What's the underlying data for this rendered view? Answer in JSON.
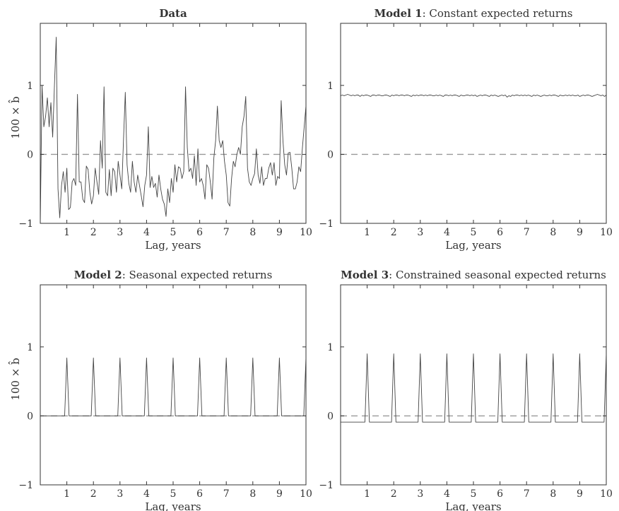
{
  "chart_data": [
    {
      "type": "line",
      "title_bold": "Data",
      "title_rest": "",
      "xlabel": "Lag, years",
      "ylabel": "100 × b̂",
      "xlim": [
        0,
        10
      ],
      "ylim": [
        -1,
        1.9
      ],
      "xticks": [
        1,
        2,
        3,
        4,
        5,
        6,
        7,
        8,
        9,
        10
      ],
      "yticks": [
        -1,
        0,
        1
      ],
      "zero_line": true,
      "series": [
        {
          "values": [
            -1.0,
            1.0,
            0.4,
            0.55,
            0.82,
            0.4,
            0.75,
            0.25,
            1.0,
            1.7,
            -0.5,
            -0.92,
            -0.45,
            -0.25,
            -0.55,
            -0.2,
            -0.8,
            -0.77,
            -0.4,
            -0.35,
            -0.45,
            0.87,
            -0.4,
            -0.4,
            -0.65,
            -0.7,
            -0.17,
            -0.22,
            -0.55,
            -0.72,
            -0.6,
            -0.2,
            -0.4,
            -0.58,
            0.2,
            -0.2,
            0.98,
            -0.55,
            -0.6,
            -0.22,
            -0.6,
            -0.2,
            -0.25,
            -0.55,
            -0.1,
            -0.3,
            -0.5,
            0.22,
            0.9,
            -0.15,
            -0.42,
            -0.55,
            -0.1,
            -0.4,
            -0.55,
            -0.3,
            -0.45,
            -0.6,
            -0.76,
            -0.45,
            -0.3,
            0.4,
            -0.48,
            -0.32,
            -0.48,
            -0.42,
            -0.62,
            -0.3,
            -0.5,
            -0.65,
            -0.72,
            -0.9,
            -0.5,
            -0.7,
            -0.35,
            -0.55,
            -0.15,
            -0.4,
            -0.18,
            -0.2,
            -0.35,
            -0.25,
            0.98,
            0.1,
            -0.25,
            -0.2,
            -0.35,
            -0.02,
            -0.45,
            0.08,
            -0.4,
            -0.35,
            -0.45,
            -0.65,
            -0.15,
            -0.2,
            -0.4,
            -0.65,
            -0.05,
            0.2,
            0.7,
            0.2,
            0.1,
            0.2,
            -0.1,
            -0.3,
            -0.7,
            -0.75,
            -0.35,
            -0.1,
            -0.18,
            0.0,
            0.1,
            0.0,
            0.4,
            0.55,
            0.84,
            -0.2,
            -0.4,
            -0.45,
            -0.35,
            -0.28,
            0.08,
            -0.3,
            -0.42,
            -0.18,
            -0.45,
            -0.35,
            -0.35,
            -0.2,
            -0.12,
            -0.3,
            -0.12,
            -0.45,
            -0.32,
            -0.35,
            0.78,
            0.2,
            -0.15,
            -0.3,
            0.02,
            0.03,
            -0.2,
            -0.5,
            -0.5,
            -0.4,
            -0.18,
            -0.25,
            0.1,
            0.4,
            0.7
          ]
        }
      ]
    },
    {
      "type": "line",
      "title_bold": "Model 1",
      "title_rest": ": Constant expected returns",
      "xlabel": "Lag, years",
      "ylabel": "",
      "xlim": [
        0,
        10
      ],
      "ylim": [
        -1,
        1.9
      ],
      "xticks": [
        1,
        2,
        3,
        4,
        5,
        6,
        7,
        8,
        9,
        10
      ],
      "yticks": [
        -1,
        0,
        1
      ],
      "zero_line": true,
      "series": [
        {
          "values": [
            0.85,
            0.86,
            0.85,
            0.86,
            0.87,
            0.86,
            0.85,
            0.86,
            0.85,
            0.86,
            0.86,
            0.84,
            0.86,
            0.85,
            0.86,
            0.86,
            0.85,
            0.84,
            0.86,
            0.86,
            0.85,
            0.86,
            0.86,
            0.85,
            0.85,
            0.86,
            0.86,
            0.85,
            0.84,
            0.86,
            0.85,
            0.86,
            0.86,
            0.85,
            0.86,
            0.86,
            0.85,
            0.86,
            0.86,
            0.85,
            0.84,
            0.86,
            0.85,
            0.86,
            0.85,
            0.86,
            0.86,
            0.85,
            0.86,
            0.85,
            0.86,
            0.86,
            0.85,
            0.85,
            0.86,
            0.85,
            0.86,
            0.85,
            0.84,
            0.86,
            0.86,
            0.85,
            0.86,
            0.85,
            0.86,
            0.86,
            0.85,
            0.84,
            0.86,
            0.85,
            0.85,
            0.86,
            0.86,
            0.85,
            0.86,
            0.85,
            0.86,
            0.84,
            0.85,
            0.86,
            0.85,
            0.86,
            0.86,
            0.85,
            0.84,
            0.86,
            0.85,
            0.86,
            0.85,
            0.84,
            0.85,
            0.86,
            0.85,
            0.86,
            0.83,
            0.85,
            0.84,
            0.86,
            0.85,
            0.86,
            0.86,
            0.85,
            0.86,
            0.85,
            0.86,
            0.85,
            0.86,
            0.85,
            0.84,
            0.86,
            0.85,
            0.86,
            0.85,
            0.84,
            0.85,
            0.86,
            0.85,
            0.85,
            0.86,
            0.85,
            0.86,
            0.86,
            0.85,
            0.84,
            0.86,
            0.85,
            0.85,
            0.86,
            0.85,
            0.86,
            0.85,
            0.86,
            0.85,
            0.85,
            0.86,
            0.84,
            0.85,
            0.86,
            0.85,
            0.86,
            0.86,
            0.85,
            0.84,
            0.85,
            0.86,
            0.87,
            0.86,
            0.85,
            0.86,
            0.84,
            0.86
          ]
        }
      ]
    },
    {
      "type": "line",
      "title_bold": "Model 2",
      "title_rest": ": Seasonal expected returns",
      "xlabel": "Lag, years",
      "ylabel": "100 × b̂",
      "xlim": [
        0,
        10
      ],
      "ylim": [
        -1,
        1.9
      ],
      "xticks": [
        1,
        2,
        3,
        4,
        5,
        6,
        7,
        8,
        9,
        10
      ],
      "yticks": [
        -1,
        0,
        1
      ],
      "zero_line": true,
      "baseline": 0.0,
      "spike_value": 0.84
    },
    {
      "type": "line",
      "title_bold": "Model 3",
      "title_rest": ": Constrained seasonal expected returns",
      "xlabel": "Lag, years",
      "ylabel": "",
      "xlim": [
        0,
        10
      ],
      "ylim": [
        -1,
        1.9
      ],
      "xticks": [
        1,
        2,
        3,
        4,
        5,
        6,
        7,
        8,
        9,
        10
      ],
      "yticks": [
        -1,
        0,
        1
      ],
      "zero_line": true,
      "baseline": -0.09,
      "spike_value": 0.9
    }
  ]
}
